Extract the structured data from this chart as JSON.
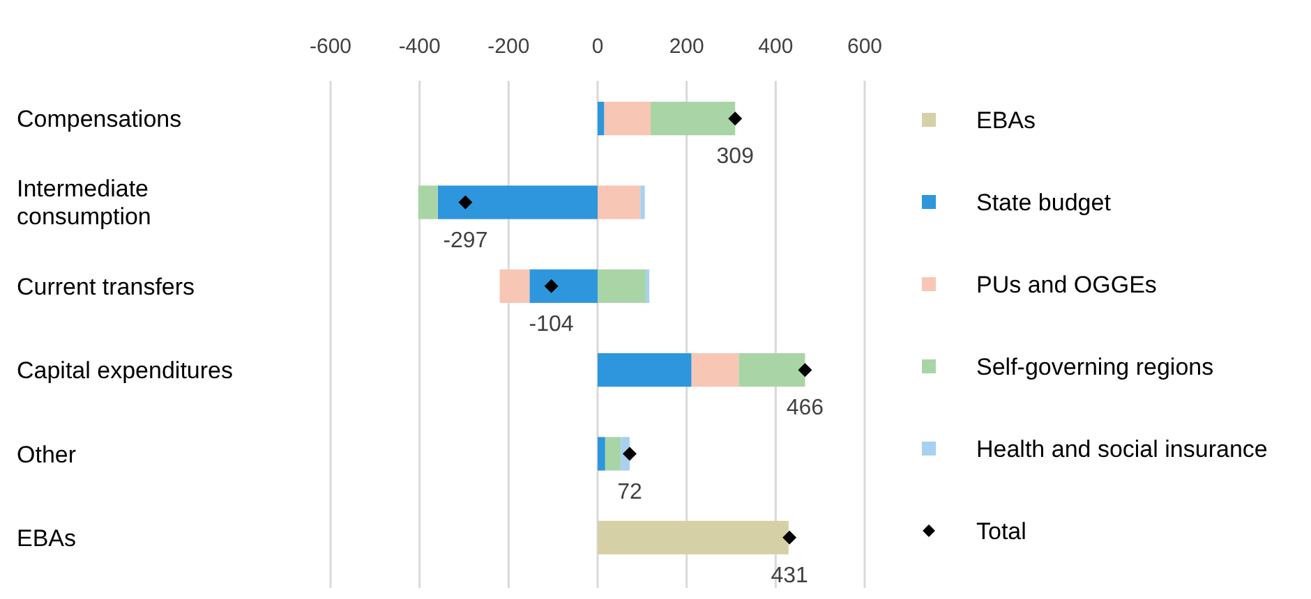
{
  "chart_data": {
    "type": "bar",
    "orientation": "horizontal",
    "stacked": true,
    "categories": [
      "Compensations",
      "Intermediate consumption",
      "Current transfers",
      "Capital expenditures",
      "Other",
      "EBAs"
    ],
    "series": [
      {
        "name": "EBAs",
        "color": "#d6d0a6",
        "values": [
          null,
          null,
          null,
          null,
          null,
          429
        ]
      },
      {
        "name": "State budget",
        "color": "#2e96dc",
        "values": [
          15,
          -359,
          -153,
          211,
          17,
          null
        ]
      },
      {
        "name": "PUs and OGGEs",
        "color": "#f8c6b5",
        "values": [
          104,
          96,
          -67,
          106,
          null,
          null
        ]
      },
      {
        "name": "Self-governing regions",
        "color": "#a9d5a6",
        "values": [
          190,
          -44,
          108,
          149,
          35,
          null
        ]
      },
      {
        "name": "Health and social insurance",
        "color": "#a8d0f0",
        "values": [
          null,
          10,
          8,
          null,
          20,
          null
        ]
      },
      {
        "name": "Total",
        "type": "scatter",
        "marker": "diamond",
        "color": "#000000",
        "values": [
          309,
          -297,
          -104,
          466,
          72,
          431
        ],
        "value_labels": [
          "309",
          "-297",
          "-104",
          "466",
          "72",
          "431"
        ]
      }
    ],
    "xlim": [
      -600,
      600
    ],
    "xticks": [
      -600,
      -400,
      -200,
      0,
      200,
      400,
      600
    ],
    "grid": "x",
    "legend": "right"
  }
}
